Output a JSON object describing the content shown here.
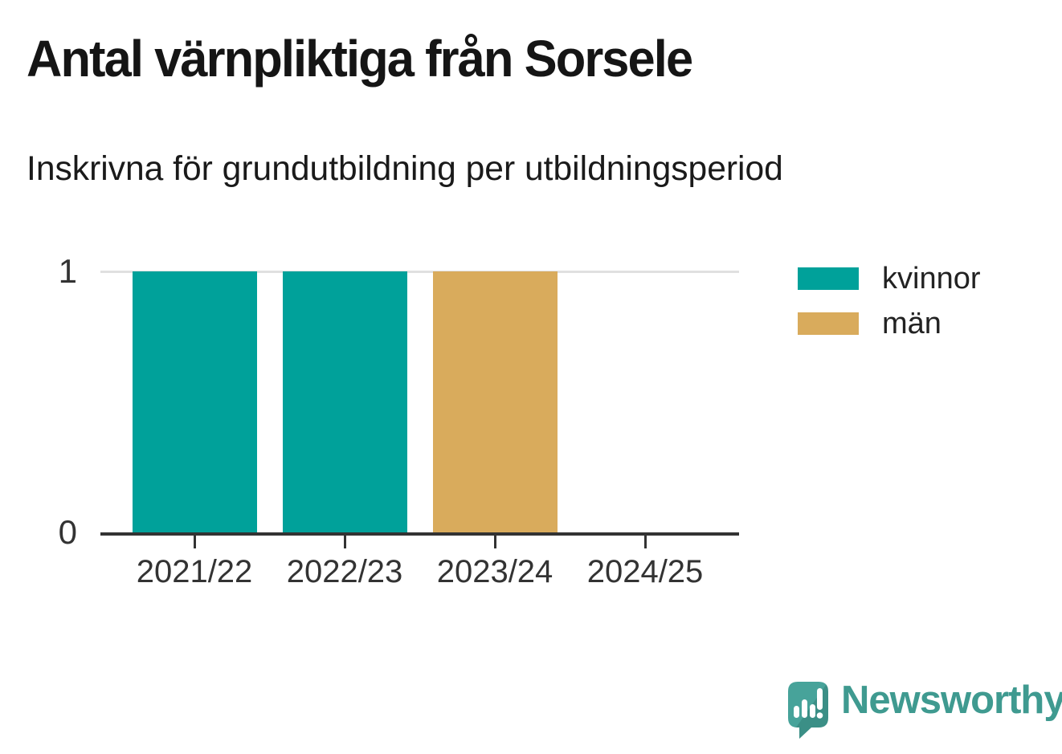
{
  "header": {
    "title": "Antal värnpliktiga från Sorsele",
    "subtitle": "Inskrivna för grundutbildning per utbildningsperiod"
  },
  "chart_data": {
    "type": "bar",
    "stacked": true,
    "title": "Antal värnpliktiga från Sorsele",
    "subtitle": "Inskrivna för grundutbildning per utbildningsperiod",
    "categories": [
      "2021/22",
      "2022/23",
      "2023/24",
      "2024/25"
    ],
    "series": [
      {
        "name": "kvinnor",
        "color": "#00a19a",
        "values": [
          1,
          1,
          0,
          0
        ]
      },
      {
        "name": "män",
        "color": "#d9ab5c",
        "values": [
          0,
          0,
          1,
          0
        ]
      }
    ],
    "xlabel": "",
    "ylabel": "",
    "ylim": [
      0,
      1
    ],
    "yticks": [
      {
        "value": 1,
        "label": "1"
      },
      {
        "value": 0,
        "label": "0"
      }
    ],
    "gridlines": [
      1
    ],
    "legend_position": "right",
    "grid": "horizontal-at-max-only"
  },
  "branding": {
    "logo_text": "Newsworthy",
    "logo_color": "#3f9a90"
  },
  "colors": {
    "axis": "#333333",
    "gridline": "#e0e0e0",
    "title_text": "#151515",
    "tick_text": "#333333"
  }
}
